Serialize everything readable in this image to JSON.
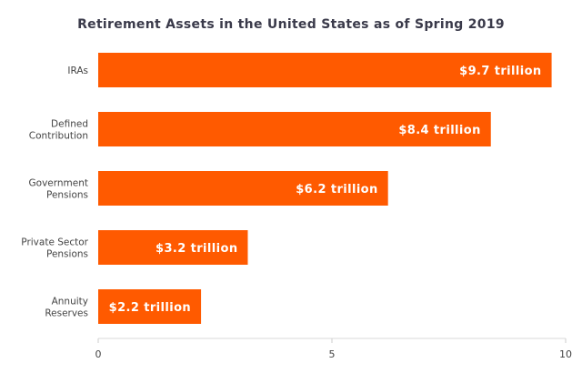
{
  "chart_data": {
    "type": "bar",
    "orientation": "horizontal",
    "title": "Retirement Assets in the United States as of Spring 2019",
    "xlabel": "",
    "ylabel": "",
    "categories": [
      [
        "IRAs"
      ],
      [
        "Defined",
        "Contribution"
      ],
      [
        "Government",
        "Pensions"
      ],
      [
        "Private Sector",
        "Pensions"
      ],
      [
        "Annuity",
        "Reserves"
      ]
    ],
    "values": [
      9.7,
      8.4,
      6.2,
      3.2,
      2.2
    ],
    "data_labels": [
      "$9.7 trillion",
      "$8.4 trillion",
      "$6.2 trillion",
      "$3.2 trillion",
      "$2.2 trillion"
    ],
    "xlim": [
      0,
      10
    ],
    "xticks": [
      0,
      5,
      10
    ],
    "bar_color": "#ff5a00",
    "grid": false,
    "legend": "none"
  }
}
